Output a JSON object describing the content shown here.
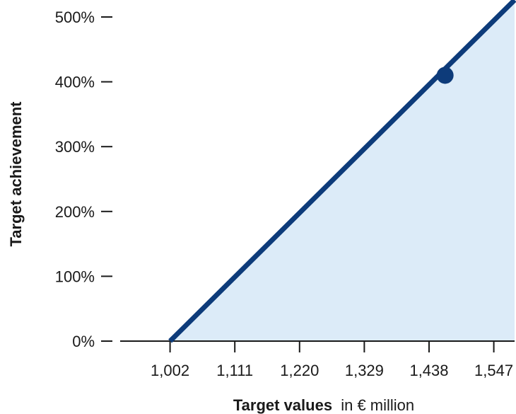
{
  "chart_data": {
    "type": "area",
    "title": "",
    "xlabel_bold": "Target values",
    "xlabel_rest": "in € million",
    "ylabel": "Target achievement",
    "x_ticks": [
      1002,
      1111,
      1220,
      1329,
      1438,
      1547
    ],
    "x_tick_labels": [
      "1,002",
      "1,111",
      "1,220",
      "1,329",
      "1,438",
      "1,547"
    ],
    "y_ticks": [
      0,
      100,
      200,
      300,
      400,
      500
    ],
    "y_tick_labels": [
      "0%",
      "100%",
      "200%",
      "300%",
      "400%",
      "500%"
    ],
    "xlim": [
      918,
      1582
    ],
    "ylim": [
      0,
      500
    ],
    "series": [
      {
        "points": [
          [
            918,
            0
          ],
          [
            1002,
            0
          ],
          [
            1582,
            532
          ]
        ]
      }
    ],
    "highlight_point": {
      "x": 1465,
      "y": 410
    },
    "colors": {
      "line": "#0d3b7a",
      "fill": "#dcebf8",
      "axis": "#1a1a1a"
    }
  }
}
